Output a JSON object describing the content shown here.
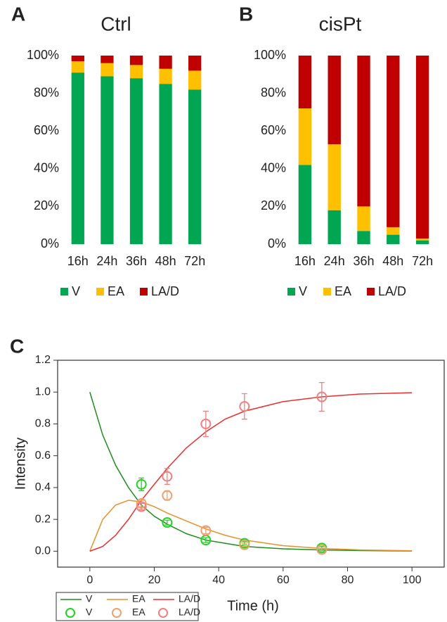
{
  "chart_data": [
    {
      "type": "bar",
      "stacked": true,
      "panel_label": "A",
      "title": "Ctrl",
      "categories": [
        "16h",
        "24h",
        "36h",
        "48h",
        "72h"
      ],
      "series": [
        {
          "name": "V",
          "color": "#00a651",
          "values": [
            91,
            89,
            88,
            85,
            82
          ]
        },
        {
          "name": "EA",
          "color": "#ffc000",
          "values": [
            6,
            7,
            7,
            8,
            10
          ]
        },
        {
          "name": "LA/D",
          "color": "#c00000",
          "values": [
            3,
            4,
            5,
            7,
            8
          ]
        }
      ],
      "ylim": [
        0,
        100
      ],
      "yticks": [
        {
          "value": 0,
          "label": "0%"
        },
        {
          "value": 20,
          "label": "20%"
        },
        {
          "value": 40,
          "label": "40%"
        },
        {
          "value": 60,
          "label": "60%"
        },
        {
          "value": 80,
          "label": "80%"
        },
        {
          "value": 100,
          "label": "100%"
        }
      ]
    },
    {
      "type": "bar",
      "stacked": true,
      "panel_label": "B",
      "title": "cisPt",
      "categories": [
        "16h",
        "24h",
        "36h",
        "48h",
        "72h"
      ],
      "series": [
        {
          "name": "V",
          "color": "#00a651",
          "values": [
            42,
            18,
            7,
            5,
            2
          ]
        },
        {
          "name": "EA",
          "color": "#ffc000",
          "values": [
            30,
            35,
            13,
            4,
            1
          ]
        },
        {
          "name": "LA/D",
          "color": "#c00000",
          "values": [
            28,
            47,
            80,
            91,
            97
          ]
        }
      ],
      "ylim": [
        0,
        100
      ],
      "yticks": [
        {
          "value": 0,
          "label": "0%"
        },
        {
          "value": 20,
          "label": "20%"
        },
        {
          "value": 40,
          "label": "40%"
        },
        {
          "value": 60,
          "label": "60%"
        },
        {
          "value": 80,
          "label": "80%"
        },
        {
          "value": 100,
          "label": "100%"
        }
      ]
    },
    {
      "type": "line",
      "panel_label": "C",
      "x_label": "Time (h)",
      "y_label": "Intensity",
      "xlim": [
        -10,
        110
      ],
      "xticks": [
        0,
        20,
        40,
        60,
        80,
        100
      ],
      "ylim": [
        -0.1,
        1.2
      ],
      "yticks": [
        {
          "value": 0,
          "label": "0.0"
        },
        {
          "value": 0.2,
          "label": "0.2"
        },
        {
          "value": 0.4,
          "label": "0.4"
        },
        {
          "value": 0.6,
          "label": "0.6"
        },
        {
          "value": 0.8,
          "label": "0.8"
        },
        {
          "value": 1,
          "label": "1.0"
        },
        {
          "value": 1.2,
          "label": "1.2"
        }
      ],
      "series": [
        {
          "name": "V",
          "style": "line",
          "color": "#1e8c1e",
          "x": [
            0,
            4,
            8,
            12,
            16,
            20,
            24,
            30,
            36,
            42,
            48,
            60,
            72,
            84,
            100
          ],
          "values": [
            1.0,
            0.73,
            0.54,
            0.4,
            0.29,
            0.22,
            0.17,
            0.11,
            0.07,
            0.05,
            0.03,
            0.015,
            0.008,
            0.004,
            0.001
          ]
        },
        {
          "name": "EA",
          "style": "line",
          "color": "#e8902a",
          "x": [
            0,
            4,
            8,
            12,
            16,
            20,
            24,
            30,
            36,
            42,
            48,
            60,
            72,
            84,
            100
          ],
          "values": [
            0,
            0.2,
            0.29,
            0.32,
            0.31,
            0.28,
            0.24,
            0.19,
            0.14,
            0.1,
            0.07,
            0.035,
            0.017,
            0.008,
            0.003
          ]
        },
        {
          "name": "LA/D",
          "style": "line",
          "color": "#e83030",
          "x": [
            0,
            4,
            8,
            12,
            16,
            20,
            24,
            30,
            36,
            42,
            48,
            60,
            72,
            84,
            100
          ],
          "values": [
            0,
            0.03,
            0.1,
            0.2,
            0.32,
            0.42,
            0.52,
            0.65,
            0.75,
            0.83,
            0.88,
            0.94,
            0.97,
            0.988,
            0.996
          ]
        },
        {
          "name": "V",
          "style": "markers",
          "color": "#22d422",
          "x": [
            16,
            24,
            36,
            48,
            72
          ],
          "values": [
            0.42,
            0.18,
            0.07,
            0.05,
            0.02
          ],
          "errors": [
            0.04,
            0.015,
            0.015,
            0.01,
            0.01
          ]
        },
        {
          "name": "EA",
          "style": "markers",
          "color": "#f0a070",
          "x": [
            16,
            24,
            36,
            48,
            72
          ],
          "values": [
            0.3,
            0.35,
            0.13,
            0.04,
            0.01
          ],
          "errors": [
            0.02,
            0.03,
            0.02,
            0.01,
            0.01
          ]
        },
        {
          "name": "LA/D",
          "style": "markers",
          "color": "#f08080",
          "x": [
            16,
            24,
            36,
            48,
            72
          ],
          "values": [
            0.28,
            0.47,
            0.8,
            0.91,
            0.97
          ],
          "errors": [
            0.02,
            0.05,
            0.08,
            0.08,
            0.09
          ]
        }
      ]
    }
  ]
}
